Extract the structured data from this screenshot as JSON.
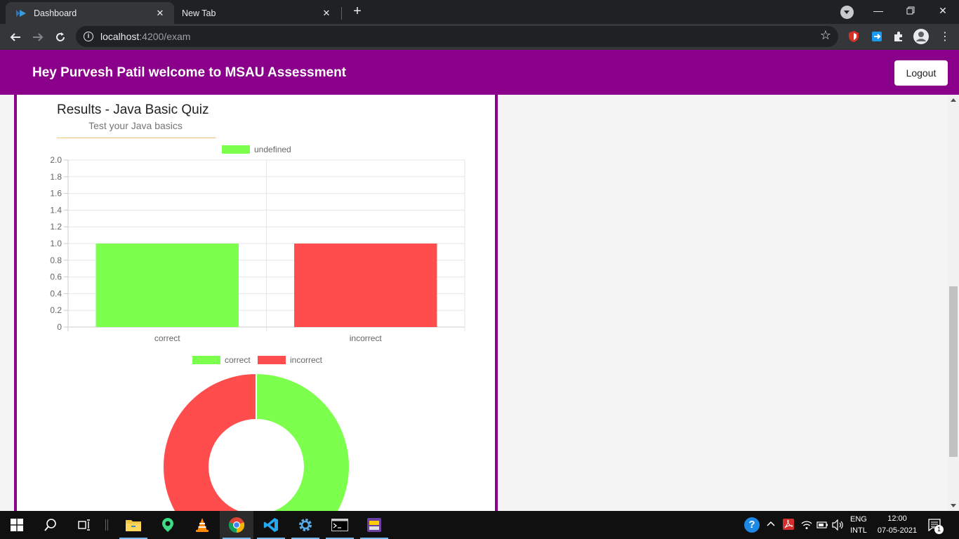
{
  "browser": {
    "tabs": [
      {
        "title": "Dashboard",
        "active": true
      },
      {
        "title": "New Tab",
        "active": false
      }
    ],
    "url_host": "localhost",
    "url_path": ":4200/exam"
  },
  "header": {
    "welcome": "Hey Purvesh Patil welcome to MSAU Assessment",
    "logout_label": "Logout"
  },
  "quiz": {
    "title": "Results - Java Basic Quiz",
    "subtitle": "Test your Java basics"
  },
  "colors": {
    "brand": "#8a008a",
    "correct": "#7dff4d",
    "incorrect": "#ff4d4d"
  },
  "chart_data": [
    {
      "type": "bar",
      "categories": [
        "correct",
        "incorrect"
      ],
      "series": [
        {
          "name": "undefined",
          "values": [
            1,
            1
          ]
        }
      ],
      "bar_colors": [
        "#7dff4d",
        "#ff4d4d"
      ],
      "yticks": [
        "0",
        "0.2",
        "0.4",
        "0.6",
        "0.8",
        "1.0",
        "1.2",
        "1.4",
        "1.6",
        "1.8",
        "2.0"
      ],
      "ylim": [
        0,
        2
      ],
      "grid": true,
      "legend": "top"
    },
    {
      "type": "pie",
      "variant": "doughnut",
      "labels": [
        "correct",
        "incorrect"
      ],
      "values": [
        1,
        1
      ],
      "colors": [
        "#7dff4d",
        "#ff4d4d"
      ],
      "legend": "top"
    }
  ],
  "taskbar": {
    "lang_top": "ENG",
    "lang_bottom": "INTL",
    "time": "12:00",
    "date": "07-05-2021",
    "notification_count": "1"
  }
}
